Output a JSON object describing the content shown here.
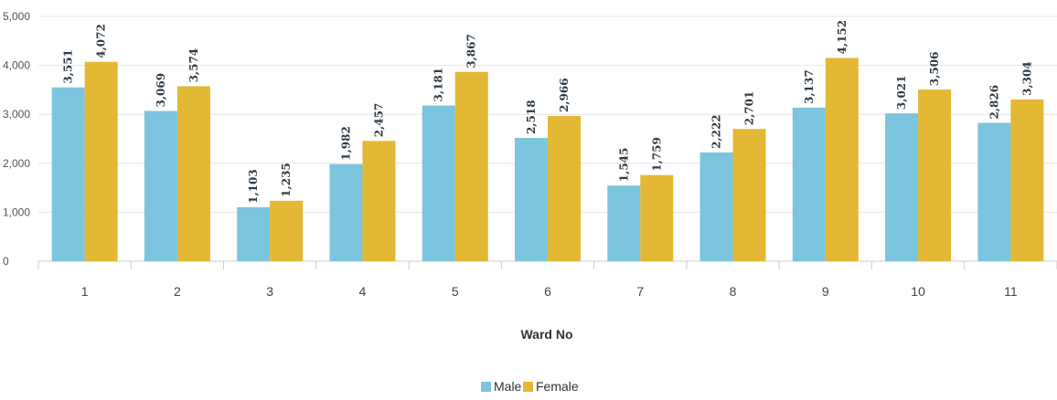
{
  "chart_data": {
    "type": "bar",
    "title": "",
    "xlabel": "Ward No",
    "ylabel": "",
    "categories": [
      "1",
      "2",
      "3",
      "4",
      "5",
      "6",
      "7",
      "8",
      "9",
      "10",
      "11"
    ],
    "series": [
      {
        "name": "Male",
        "color": "#7cc5de",
        "values": [
          3551,
          3069,
          1103,
          1982,
          3181,
          2518,
          1545,
          2222,
          3137,
          3021,
          2826
        ],
        "labels": [
          "3,551",
          "3,069",
          "1,103",
          "1,982",
          "3,181",
          "2,518",
          "1,545",
          "2,222",
          "3,137",
          "3,021",
          "2,826"
        ]
      },
      {
        "name": "Female",
        "color": "#e2b835",
        "values": [
          4072,
          3574,
          1235,
          2457,
          3867,
          2966,
          1759,
          2701,
          4152,
          3506,
          3304
        ],
        "labels": [
          "4,072",
          "3,574",
          "1,235",
          "2,457",
          "3,867",
          "2,966",
          "1,759",
          "2,701",
          "4,152",
          "3,506",
          "3,304"
        ]
      }
    ],
    "ylim": [
      0,
      5000
    ],
    "yticks": [
      0,
      1000,
      2000,
      3000,
      4000,
      5000
    ],
    "ytick_labels": [
      "0",
      "1,000",
      "2,000",
      "3,000",
      "4,000",
      "5,000"
    ],
    "grid": true,
    "legend_position": "bottom-center"
  }
}
